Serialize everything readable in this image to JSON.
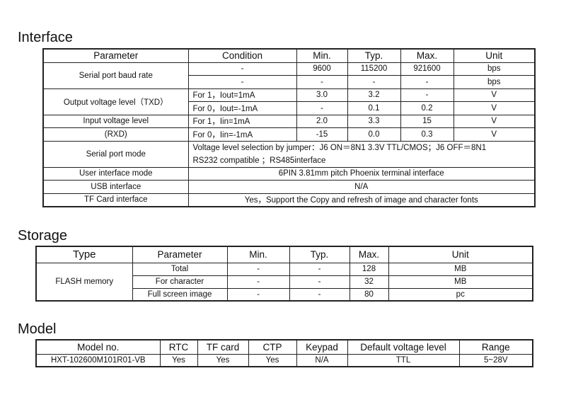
{
  "interface": {
    "title": "Interface",
    "headers": [
      "Parameter",
      "Condition",
      "Min.",
      "Typ.",
      "Max.",
      "Unit"
    ],
    "baud": {
      "param": "Serial port baud rate",
      "rows": [
        [
          "-",
          "9600",
          "115200",
          "921600",
          "bps"
        ],
        [
          "-",
          "-",
          "-",
          "-",
          "bps"
        ]
      ]
    },
    "txd": {
      "param": "Output voltage level（TXD）",
      "rows": [
        [
          "For 1，Iout=1mA",
          "3.0",
          "3.2",
          "-",
          "V"
        ],
        [
          "For 0，Iout=-1mA",
          "-",
          "0.1",
          "0.2",
          "V"
        ]
      ]
    },
    "rxd": {
      "param1": "Input voltage level",
      "param2": "(RXD)",
      "rows": [
        [
          "For 1，Iin=1mA",
          "2.0",
          "3.3",
          "15",
          "V"
        ],
        [
          "For 0，Iin=-1mA",
          "-15",
          "0.0",
          "0.3",
          "V"
        ]
      ]
    },
    "serial_mode": {
      "param": "Serial port mode",
      "line1": "Voltage level selection by jumper：J6 ON＝8N1 3.3V TTL/CMOS；J6 OFF＝8N1",
      "line2": "RS232 compatible ；RS485interface"
    },
    "ui_mode": {
      "param": "User interface mode",
      "value": "6PIN 3.81mm pitch Phoenix terminal interface"
    },
    "usb": {
      "param": "USB interface",
      "value": "N/A"
    },
    "tf": {
      "param": "TF Card interface",
      "value": "Yes，Support the Copy and refresh of image and character fonts"
    }
  },
  "storage": {
    "title": "Storage",
    "headers": [
      "Type",
      "Parameter",
      "Min.",
      "Typ.",
      "Max.",
      "Unit"
    ],
    "type": "FLASH memory",
    "rows": [
      [
        "Total",
        "-",
        "-",
        "128",
        "MB"
      ],
      [
        "For character",
        "-",
        "-",
        "32",
        "MB"
      ],
      [
        "Full screen image",
        "-",
        "-",
        "80",
        "pc"
      ]
    ]
  },
  "model": {
    "title": "Model",
    "headers": [
      "Model no.",
      "RTC",
      "TF card",
      "CTP",
      "Keypad",
      "Default voltage level",
      "Range"
    ],
    "row": [
      "HXT-102600M101R01-VB",
      "Yes",
      "Yes",
      "Yes",
      "N/A",
      "TTL",
      "5~28V"
    ]
  }
}
